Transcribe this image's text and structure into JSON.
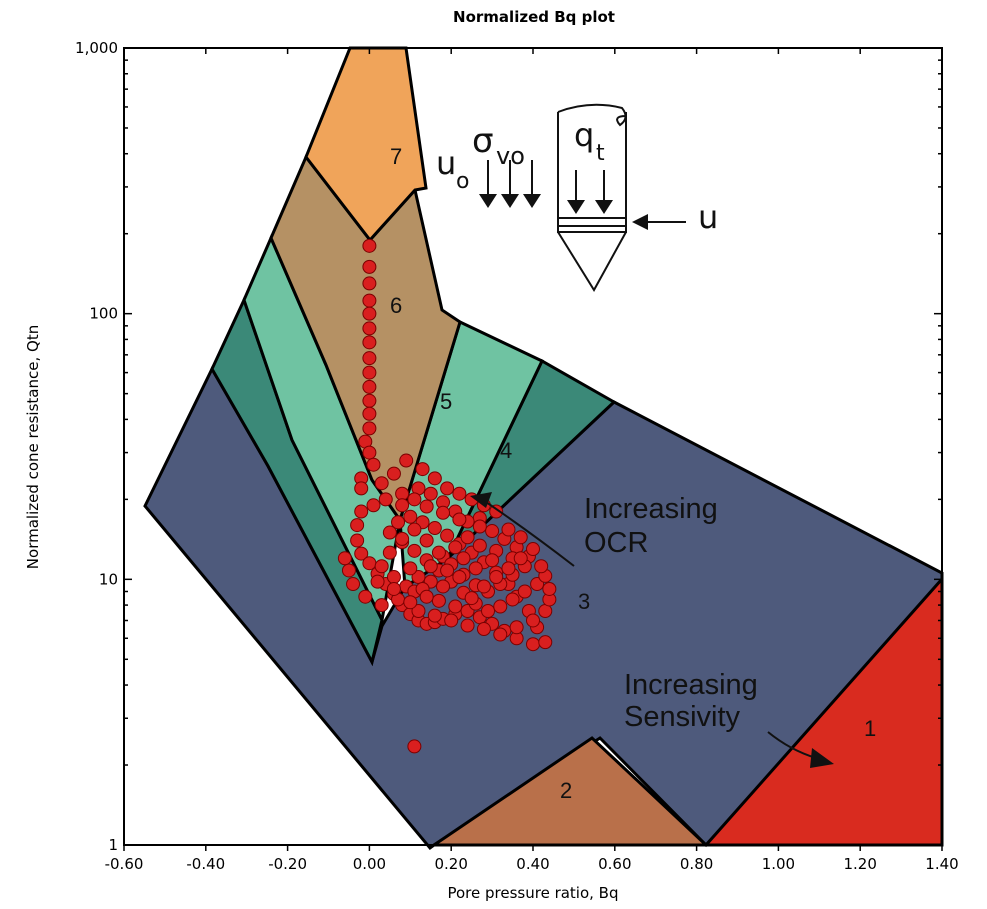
{
  "chart_data": {
    "type": "scatter",
    "title": "Normalized Bq plot",
    "xlabel": "Pore pressure ratio, Bq",
    "ylabel": "Normalized cone resistance, Qtn",
    "xlim": [
      -0.6,
      1.4
    ],
    "ylim": [
      1,
      1000
    ],
    "y_scale": "log",
    "x_ticks": [
      "-0.60",
      "-0.40",
      "-0.20",
      "0.00",
      "0.20",
      "0.40",
      "0.60",
      "0.80",
      "1.00",
      "1.20",
      "1.40"
    ],
    "y_ticks": [
      "1",
      "10",
      "100",
      "1,000"
    ],
    "grid": false,
    "colors": {
      "zone1": "#d92b1f",
      "zone2": "#b9704a",
      "zone3": "#4e5a7c",
      "zone4": "#3b8978",
      "zone5": "#6fc3a2",
      "zone6": "#b59164",
      "zone7": "#f0a45a",
      "marker_fill": "#d91f1f",
      "marker_edge": "#7a0000"
    },
    "zones": [
      {
        "label": "1",
        "color_key": "zone1"
      },
      {
        "label": "2",
        "color_key": "zone2"
      },
      {
        "label": "3",
        "color_key": "zone3"
      },
      {
        "label": "4",
        "color_key": "zone4"
      },
      {
        "label": "5",
        "color_key": "zone5"
      },
      {
        "label": "6",
        "color_key": "zone6"
      },
      {
        "label": "7",
        "color_key": "zone7"
      }
    ],
    "annotations": {
      "increasing_ocr": [
        "Increasing",
        "OCR"
      ],
      "increasing_sensitivity": [
        "Increasing",
        "Sensivity"
      ],
      "cone_symbols": {
        "u0": "u",
        "u0_sub": "o",
        "sigma": "σ",
        "sigma_sub": "vo",
        "q": "q",
        "q_sub": "t",
        "u": "u"
      }
    },
    "series": [
      {
        "points": [
          [
            0.0,
            180
          ],
          [
            0.0,
            150
          ],
          [
            0.0,
            130
          ],
          [
            0.0,
            112
          ],
          [
            0.0,
            100
          ],
          [
            0.0,
            88
          ],
          [
            0.0,
            78
          ],
          [
            0.0,
            68
          ],
          [
            0.0,
            60
          ],
          [
            0.0,
            53
          ],
          [
            0.0,
            47
          ],
          [
            0.0,
            42
          ],
          [
            0.0,
            37
          ],
          [
            -0.01,
            33
          ],
          [
            0.0,
            30
          ],
          [
            0.01,
            27
          ],
          [
            -0.02,
            24
          ],
          [
            -0.02,
            22
          ],
          [
            0.03,
            23
          ],
          [
            0.06,
            25
          ],
          [
            0.09,
            28
          ],
          [
            0.13,
            26
          ],
          [
            0.16,
            24
          ],
          [
            0.19,
            22
          ],
          [
            0.22,
            21
          ],
          [
            0.25,
            20
          ],
          [
            0.28,
            19
          ],
          [
            0.31,
            18
          ],
          [
            0.27,
            17
          ],
          [
            0.24,
            16.5
          ],
          [
            0.21,
            18
          ],
          [
            0.18,
            19.5
          ],
          [
            0.15,
            21
          ],
          [
            0.12,
            22
          ],
          [
            0.08,
            21
          ],
          [
            0.04,
            20
          ],
          [
            0.01,
            19
          ],
          [
            -0.02,
            18
          ],
          [
            -0.03,
            16
          ],
          [
            -0.03,
            14
          ],
          [
            -0.02,
            12.5
          ],
          [
            0.0,
            11.5
          ],
          [
            0.02,
            10.5
          ],
          [
            0.04,
            9.6
          ],
          [
            0.06,
            8.8
          ],
          [
            0.08,
            8.0
          ],
          [
            0.1,
            7.4
          ],
          [
            0.12,
            7.0
          ],
          [
            0.14,
            6.8
          ],
          [
            0.16,
            6.9
          ],
          [
            0.18,
            7.1
          ],
          [
            0.21,
            7.4
          ],
          [
            0.24,
            7.6
          ],
          [
            0.27,
            7.2
          ],
          [
            0.3,
            6.8
          ],
          [
            0.33,
            6.4
          ],
          [
            0.36,
            6.0
          ],
          [
            0.4,
            5.7
          ],
          [
            0.43,
            5.8
          ],
          [
            0.41,
            6.6
          ],
          [
            0.39,
            7.6
          ],
          [
            0.36,
            8.6
          ],
          [
            0.34,
            9.6
          ],
          [
            0.31,
            10.6
          ],
          [
            0.28,
            11.6
          ],
          [
            0.25,
            12.6
          ],
          [
            0.22,
            13.6
          ],
          [
            0.19,
            14.6
          ],
          [
            0.16,
            15.6
          ],
          [
            0.13,
            16.4
          ],
          [
            0.1,
            17.2
          ],
          [
            0.07,
            16.4
          ],
          [
            0.05,
            15.0
          ],
          [
            0.08,
            13.8
          ],
          [
            0.11,
            12.8
          ],
          [
            0.14,
            11.8
          ],
          [
            0.17,
            10.8
          ],
          [
            0.2,
            9.8
          ],
          [
            0.23,
            8.9
          ],
          [
            0.26,
            8.1
          ],
          [
            0.29,
            7.6
          ],
          [
            0.32,
            7.9
          ],
          [
            0.35,
            8.4
          ],
          [
            0.38,
            9.0
          ],
          [
            0.41,
            9.6
          ],
          [
            0.43,
            10.3
          ],
          [
            0.42,
            11.2
          ],
          [
            0.39,
            12.2
          ],
          [
            0.36,
            13.2
          ],
          [
            0.33,
            14.2
          ],
          [
            0.3,
            15.2
          ],
          [
            0.27,
            15.8
          ],
          [
            0.24,
            14.4
          ],
          [
            0.21,
            13.2
          ],
          [
            0.18,
            12.2
          ],
          [
            0.15,
            11.2
          ],
          [
            0.12,
            10.2
          ],
          [
            0.09,
            9.4
          ],
          [
            0.06,
            10.2
          ],
          [
            0.03,
            11.2
          ],
          [
            0.05,
            12.6
          ],
          [
            0.08,
            14.2
          ],
          [
            0.11,
            15.4
          ],
          [
            0.14,
            14.0
          ],
          [
            0.17,
            12.6
          ],
          [
            0.2,
            11.4
          ],
          [
            0.23,
            10.4
          ],
          [
            0.26,
            9.5
          ],
          [
            0.29,
            9.0
          ],
          [
            0.32,
            9.6
          ],
          [
            0.35,
            10.4
          ],
          [
            0.38,
            11.2
          ],
          [
            0.35,
            12.0
          ],
          [
            0.31,
            12.8
          ],
          [
            0.27,
            13.4
          ],
          [
            0.23,
            12.0
          ],
          [
            0.19,
            10.8
          ],
          [
            0.15,
            9.8
          ],
          [
            0.11,
            9.0
          ],
          [
            0.07,
            8.4
          ],
          [
            0.03,
            8.0
          ],
          [
            -0.01,
            8.6
          ],
          [
            -0.04,
            9.6
          ],
          [
            -0.05,
            10.8
          ],
          [
            -0.06,
            12.0
          ],
          [
            0.1,
            11.0
          ],
          [
            0.13,
            9.2
          ],
          [
            0.17,
            8.3
          ],
          [
            0.21,
            7.9
          ],
          [
            0.25,
            8.5
          ],
          [
            0.28,
            9.4
          ],
          [
            0.31,
            10.2
          ],
          [
            0.34,
            11.0
          ],
          [
            0.37,
            12.0
          ],
          [
            0.4,
            13.0
          ],
          [
            0.37,
            14.4
          ],
          [
            0.34,
            15.4
          ],
          [
            0.22,
            16.8
          ],
          [
            0.18,
            17.8
          ],
          [
            0.14,
            18.8
          ],
          [
            0.11,
            20.0
          ],
          [
            0.08,
            19.0
          ],
          [
            0.12,
            7.6
          ],
          [
            0.16,
            7.3
          ],
          [
            0.2,
            7.0
          ],
          [
            0.24,
            6.7
          ],
          [
            0.28,
            6.5
          ],
          [
            0.32,
            6.2
          ],
          [
            0.36,
            6.6
          ],
          [
            0.4,
            7.0
          ],
          [
            0.43,
            7.6
          ],
          [
            0.44,
            8.4
          ],
          [
            0.44,
            9.2
          ],
          [
            0.3,
            11.8
          ],
          [
            0.26,
            11.0
          ],
          [
            0.22,
            10.2
          ],
          [
            0.18,
            9.4
          ],
          [
            0.14,
            8.6
          ],
          [
            0.1,
            8.2
          ],
          [
            0.06,
            9.2
          ],
          [
            0.02,
            9.8
          ],
          [
            0.11,
            2.35
          ]
        ]
      }
    ]
  }
}
